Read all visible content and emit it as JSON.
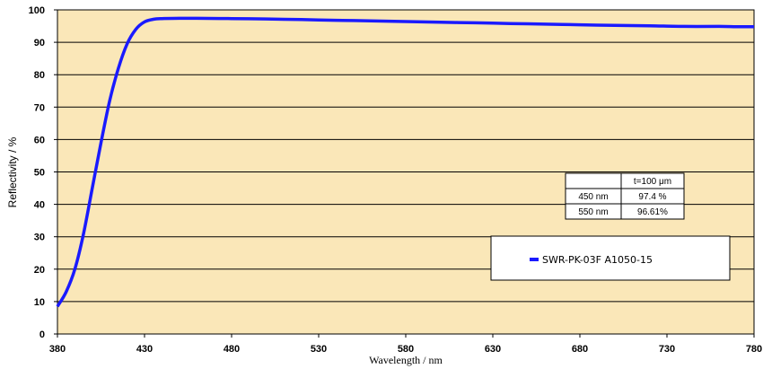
{
  "chart_data": {
    "type": "line",
    "xlabel": "Wavelength / nm",
    "ylabel": "Reflectivity / %",
    "xlim": [
      380,
      780
    ],
    "ylim": [
      0,
      100
    ],
    "xticks": [
      380,
      430,
      480,
      530,
      580,
      630,
      680,
      730,
      780
    ],
    "yticks": [
      0,
      10,
      20,
      30,
      40,
      50,
      60,
      70,
      80,
      90,
      100
    ],
    "plot_background": "#fae7b8",
    "series": [
      {
        "name": "SWR-PK-03F A1050-15",
        "color": "#1a1aff",
        "x": [
          380,
          385,
          390,
          395,
          400,
          405,
          410,
          415,
          420,
          425,
          430,
          435,
          440,
          450,
          460,
          480,
          500,
          520,
          540,
          560,
          580,
          600,
          620,
          640,
          660,
          680,
          700,
          720,
          740,
          760,
          770,
          780
        ],
        "y": [
          8.5,
          13,
          20,
          31,
          45,
          59,
          72,
          82,
          89.5,
          94,
          96.3,
          97.1,
          97.3,
          97.4,
          97.4,
          97.3,
          97.2,
          97.0,
          96.8,
          96.6,
          96.4,
          96.2,
          96.0,
          95.8,
          95.6,
          95.4,
          95.2,
          95.1,
          94.9,
          94.9,
          94.8,
          94.8
        ]
      }
    ],
    "table": {
      "header": [
        "",
        "t=100 μm"
      ],
      "rows": [
        [
          "450 nm",
          "97.4 %"
        ],
        [
          "550 nm",
          "96.61%"
        ]
      ]
    },
    "legend": "lower-right"
  }
}
